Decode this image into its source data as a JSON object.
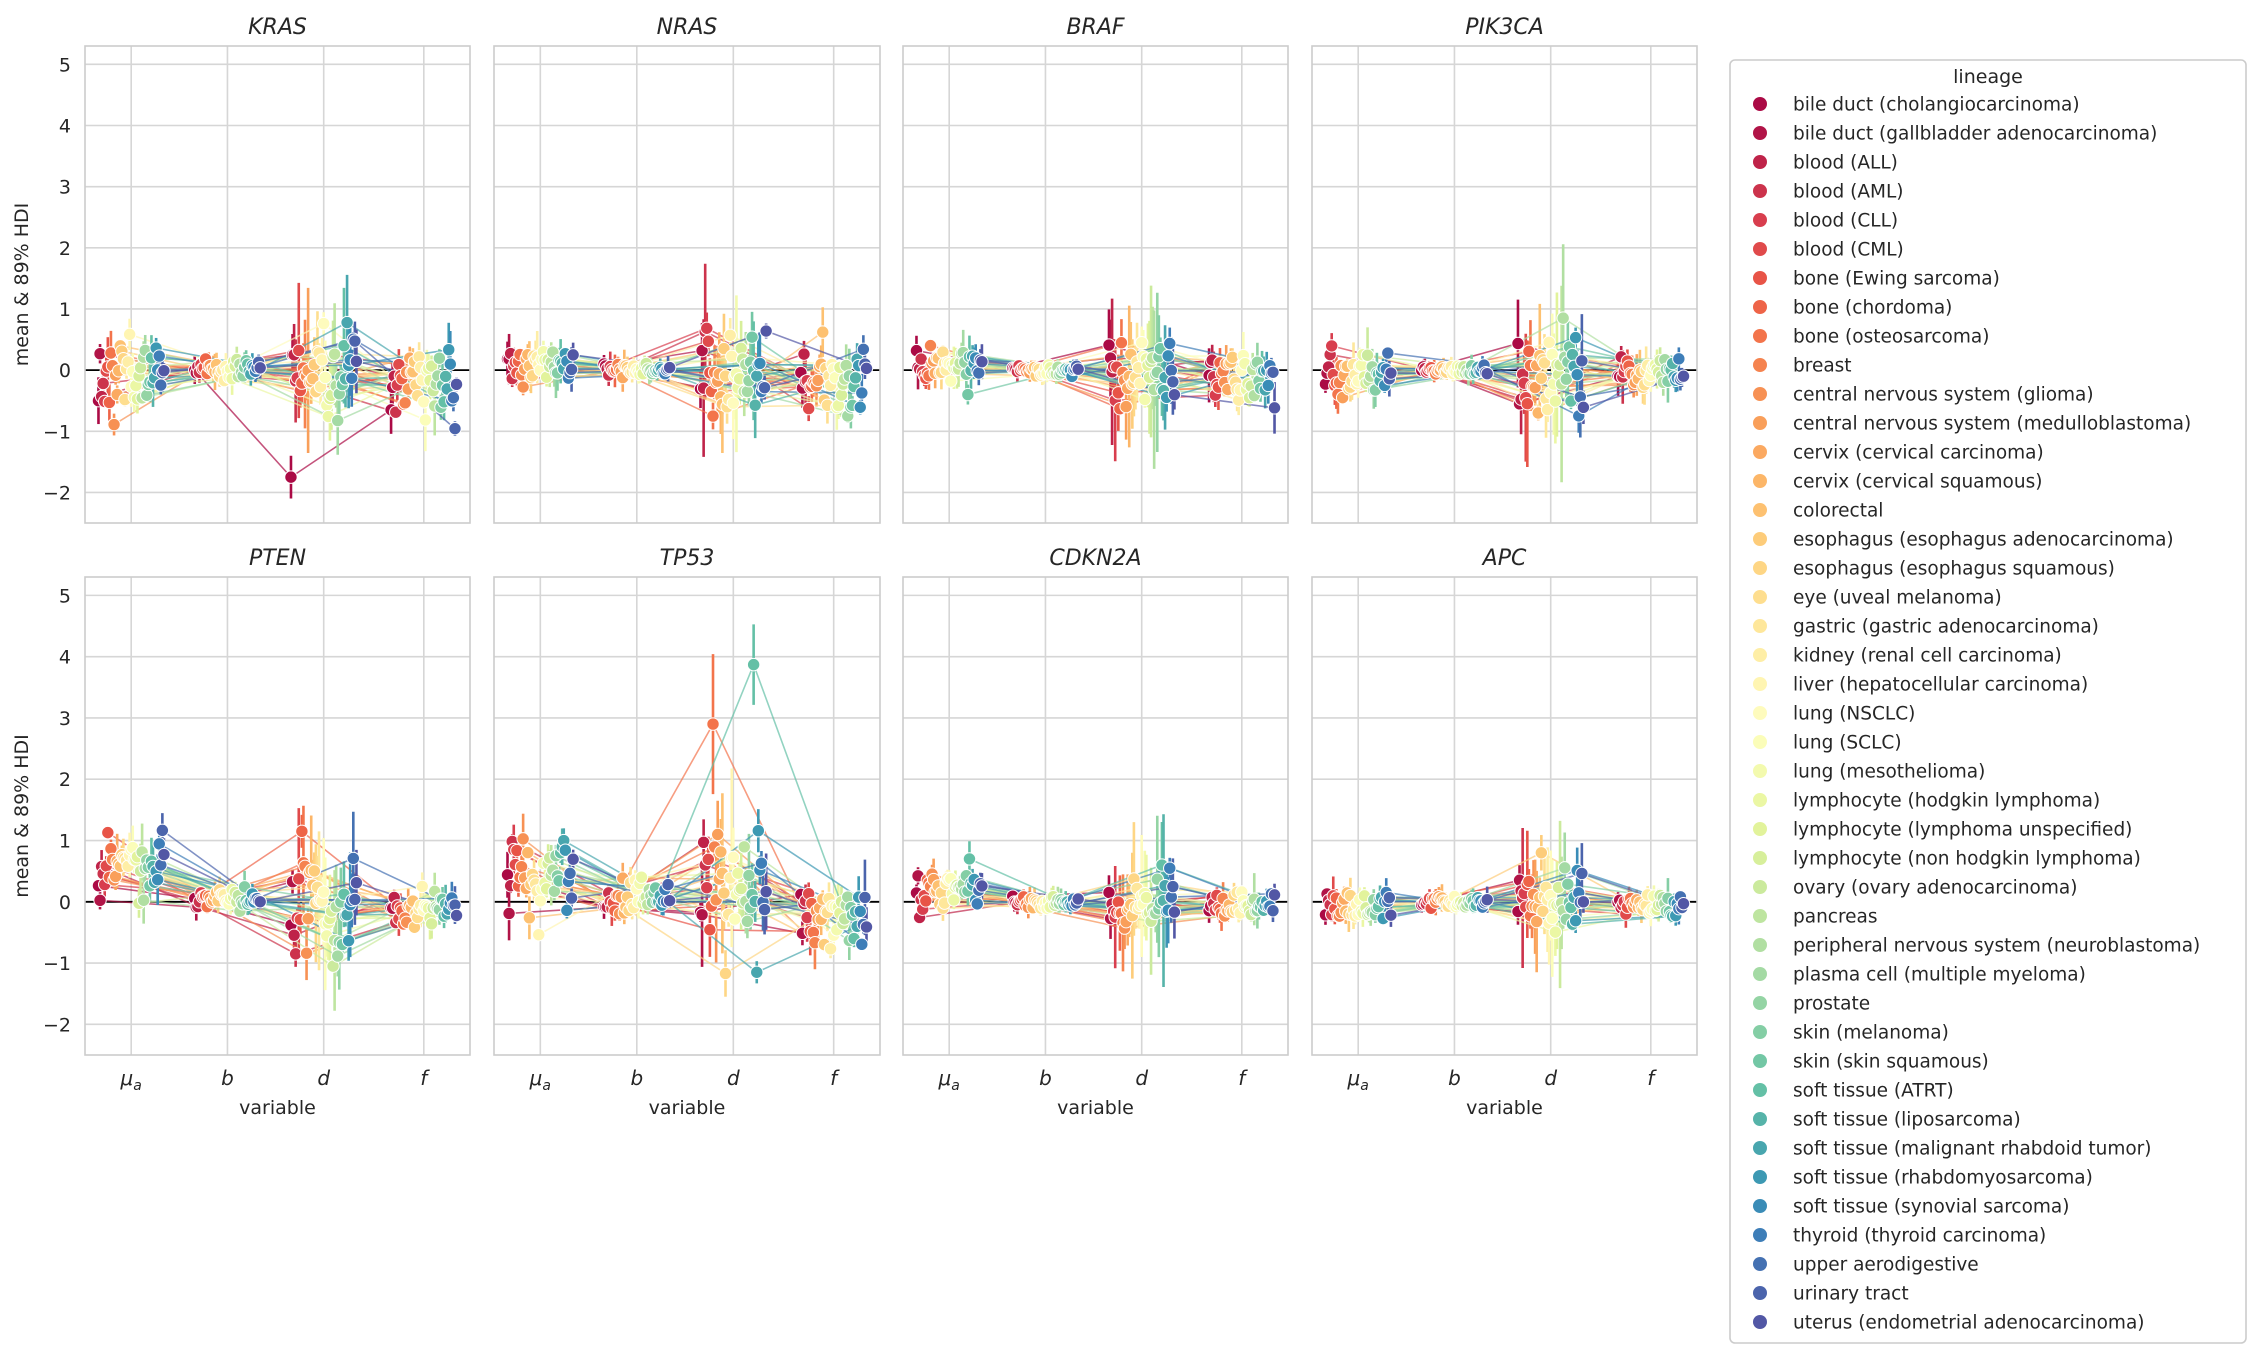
{
  "chart_data": {
    "type": "scatter",
    "layout": "facet grid, 2 rows x 4 columns, shared axes",
    "x_categories": [
      "μa",
      "b",
      "d",
      "f"
    ],
    "x_tick_html": [
      "μ_a",
      "b",
      "d",
      "f"
    ],
    "xlabel": "variable",
    "ylabel": "mean & 89% HDI",
    "ylim": [
      -2.5,
      5.3
    ],
    "yticks": [
      -2,
      -1,
      0,
      1,
      2,
      3,
      4,
      5
    ],
    "zero_line": 0,
    "grid": true,
    "palette": "Spectral",
    "legend": {
      "title": "lineage",
      "position": "outside right",
      "entries": [
        {
          "name": "bile duct (cholangiocarcinoma)",
          "color": "#ab0a45"
        },
        {
          "name": "bile duct (gallbladder adenocarcinoma)",
          "color": "#b11447"
        },
        {
          "name": "blood (ALL)",
          "color": "#bf2349"
        },
        {
          "name": "blood (AML)",
          "color": "#cc334c"
        },
        {
          "name": "blood (CLL)",
          "color": "#d83e4e"
        },
        {
          "name": "blood (CML)",
          "color": "#e04a4b"
        },
        {
          "name": "bone (Ewing sarcoma)",
          "color": "#e85447"
        },
        {
          "name": "bone (chordoma)",
          "color": "#ee6448"
        },
        {
          "name": "bone (osteosarcoma)",
          "color": "#f3744b"
        },
        {
          "name": "breast",
          "color": "#f5834f"
        },
        {
          "name": "central nervous system (glioma)",
          "color": "#f79154"
        },
        {
          "name": "central nervous system (medulloblastoma)",
          "color": "#f99f5a"
        },
        {
          "name": "cervix (cervical carcinoma)",
          "color": "#fba961"
        },
        {
          "name": "cervix (cervical squamous)",
          "color": "#fcb668"
        },
        {
          "name": "colorectal",
          "color": "#fdc171"
        },
        {
          "name": "esophagus (esophagus adenocarcinoma)",
          "color": "#fdcc7a"
        },
        {
          "name": "esophagus (esophagus squamous)",
          "color": "#fed685"
        },
        {
          "name": "eye (uveal melanoma)",
          "color": "#fede8f"
        },
        {
          "name": "gastric (gastric adenocarcinoma)",
          "color": "#fee79b"
        },
        {
          "name": "kidney (renal cell carcinoma)",
          "color": "#feeea6"
        },
        {
          "name": "liver (hepatocellular carcinoma)",
          "color": "#fff5b2"
        },
        {
          "name": "lung (NSCLC)",
          "color": "#fefbbd"
        },
        {
          "name": "lung (SCLC)",
          "color": "#fbfdb9"
        },
        {
          "name": "lung (mesothelioma)",
          "color": "#f3faae"
        },
        {
          "name": "lymphocyte (hodgkin lymphoma)",
          "color": "#ebf7a4"
        },
        {
          "name": "lymphocyte (lymphoma unspecified)",
          "color": "#e2f39b"
        },
        {
          "name": "lymphocyte (non hodgkin lymphoma)",
          "color": "#d7ef9b"
        },
        {
          "name": "ovary (ovary adenocarcinoma)",
          "color": "#cbea9d"
        },
        {
          "name": "pancreas",
          "color": "#bee5a0"
        },
        {
          "name": "peripheral nervous system (neuroblastoma)",
          "color": "#b1dfa2"
        },
        {
          "name": "plasma cell (multiple myeloma)",
          "color": "#a4daa4"
        },
        {
          "name": "prostate",
          "color": "#94d4a4"
        },
        {
          "name": "skin (melanoma)",
          "color": "#84cea5"
        },
        {
          "name": "skin (skin squamous)",
          "color": "#73c7a5"
        },
        {
          "name": "soft tissue (ATRT)",
          "color": "#64c0a6"
        },
        {
          "name": "soft tissue (liposarcoma)",
          "color": "#56b3a9"
        },
        {
          "name": "soft tissue (malignant rhabdoid tumor)",
          "color": "#48a6ae"
        },
        {
          "name": "soft tissue (rhabdomyosarcoma)",
          "color": "#3d99b3"
        },
        {
          "name": "soft tissue (synovial sarcoma)",
          "color": "#3a8cb7"
        },
        {
          "name": "thyroid (thyroid carcinoma)",
          "color": "#3e7eb8"
        },
        {
          "name": "upper aerodigestive",
          "color": "#4471b2"
        },
        {
          "name": "urinary tract",
          "color": "#4b64ac"
        },
        {
          "name": "uterus (endometrial adenocarcinoma)",
          "color": "#5257a5"
        }
      ]
    },
    "panels": [
      {
        "title": "KRAS",
        "center": {
          "μa": -0.1,
          "b": 0.0,
          "d": -0.05,
          "f": -0.2
        },
        "spread": {
          "μa": 0.3,
          "b": 0.08,
          "d": 0.4,
          "f": 0.3
        },
        "interval_spread": {
          "μa": 0.2,
          "b": 0.1,
          "d": 0.5,
          "f": 0.2
        },
        "highlights": [
          {
            "lineage": 0,
            "values": [
              -0.5,
              0.0,
              -1.75,
              -0.65
            ]
          }
        ]
      },
      {
        "title": "NRAS",
        "center": {
          "μa": 0.1,
          "b": 0.0,
          "d": -0.05,
          "f": -0.15
        },
        "spread": {
          "μa": 0.15,
          "b": 0.05,
          "d": 0.35,
          "f": 0.3
        },
        "interval_spread": {
          "μa": 0.2,
          "b": 0.1,
          "d": 0.5,
          "f": 0.2
        },
        "highlights": [
          {
            "lineage": 30,
            "values": [
              0.05,
              0.0,
              -0.35,
              -0.75
            ]
          }
        ]
      },
      {
        "title": "BRAF",
        "center": {
          "μa": 0.1,
          "b": 0.0,
          "d": -0.05,
          "f": -0.15
        },
        "spread": {
          "μa": 0.12,
          "b": 0.05,
          "d": 0.35,
          "f": 0.2
        },
        "interval_spread": {
          "μa": 0.15,
          "b": 0.08,
          "d": 0.5,
          "f": 0.2
        },
        "highlights": [
          {
            "lineage": 33,
            "values": [
              -0.4,
              0.0,
              0.35,
              -0.3
            ]
          }
        ]
      },
      {
        "title": "PIK3CA",
        "center": {
          "μa": -0.05,
          "b": 0.0,
          "d": -0.05,
          "f": -0.05
        },
        "spread": {
          "μa": 0.2,
          "b": 0.05,
          "d": 0.35,
          "f": 0.15
        },
        "interval_spread": {
          "μa": 0.2,
          "b": 0.08,
          "d": 0.6,
          "f": 0.2
        },
        "highlights": [
          {
            "lineage": 29,
            "values": [
              -0.1,
              0.0,
              0.85,
              -0.2
            ]
          }
        ]
      },
      {
        "title": "PTEN",
        "center": {
          "μa": 0.55,
          "b": 0.05,
          "d": -0.05,
          "f": -0.1
        },
        "spread": {
          "μa": 0.3,
          "b": 0.08,
          "d": 0.45,
          "f": 0.12
        },
        "interval_spread": {
          "μa": 0.2,
          "b": 0.1,
          "d": 0.5,
          "f": 0.15
        },
        "highlights": [
          {
            "lineage": 7,
            "values": [
              0.4,
              0.1,
              1.15,
              -0.15
            ]
          },
          {
            "lineage": 27,
            "values": [
              0.5,
              0.0,
              -1.05,
              -0.1
            ]
          }
        ]
      },
      {
        "title": "TP53",
        "center": {
          "μa": 0.45,
          "b": 0.1,
          "d": 0.15,
          "f": -0.3
        },
        "spread": {
          "μa": 0.4,
          "b": 0.15,
          "d": 0.55,
          "f": 0.3
        },
        "interval_spread": {
          "μa": 0.2,
          "b": 0.12,
          "d": 0.5,
          "f": 0.2
        },
        "highlights": [
          {
            "lineage": 8,
            "values": [
              0.4,
              0.1,
              2.9,
              -0.5
            ]
          },
          {
            "lineage": 34,
            "values": [
              0.8,
              0.0,
              3.87,
              -0.6
            ]
          },
          {
            "lineage": 36,
            "values": [
              1.0,
              0.1,
              -1.15,
              -0.4
            ]
          }
        ]
      },
      {
        "title": "CDKN2A",
        "center": {
          "μa": 0.15,
          "b": 0.0,
          "d": 0.0,
          "f": -0.05
        },
        "spread": {
          "μa": 0.15,
          "b": 0.05,
          "d": 0.25,
          "f": 0.12
        },
        "interval_spread": {
          "μa": 0.15,
          "b": 0.08,
          "d": 0.5,
          "f": 0.15
        },
        "highlights": [
          {
            "lineage": 34,
            "values": [
              0.7,
              0.0,
              0.6,
              0.0
            ]
          }
        ]
      },
      {
        "title": "APC",
        "center": {
          "μa": -0.1,
          "b": 0.0,
          "d": 0.05,
          "f": -0.05
        },
        "spread": {
          "μa": 0.15,
          "b": 0.05,
          "d": 0.25,
          "f": 0.1
        },
        "interval_spread": {
          "μa": 0.15,
          "b": 0.08,
          "d": 0.5,
          "f": 0.12
        },
        "highlights": [
          {
            "lineage": 15,
            "values": [
              -0.2,
              0.0,
              0.8,
              -0.1
            ]
          }
        ]
      }
    ]
  }
}
